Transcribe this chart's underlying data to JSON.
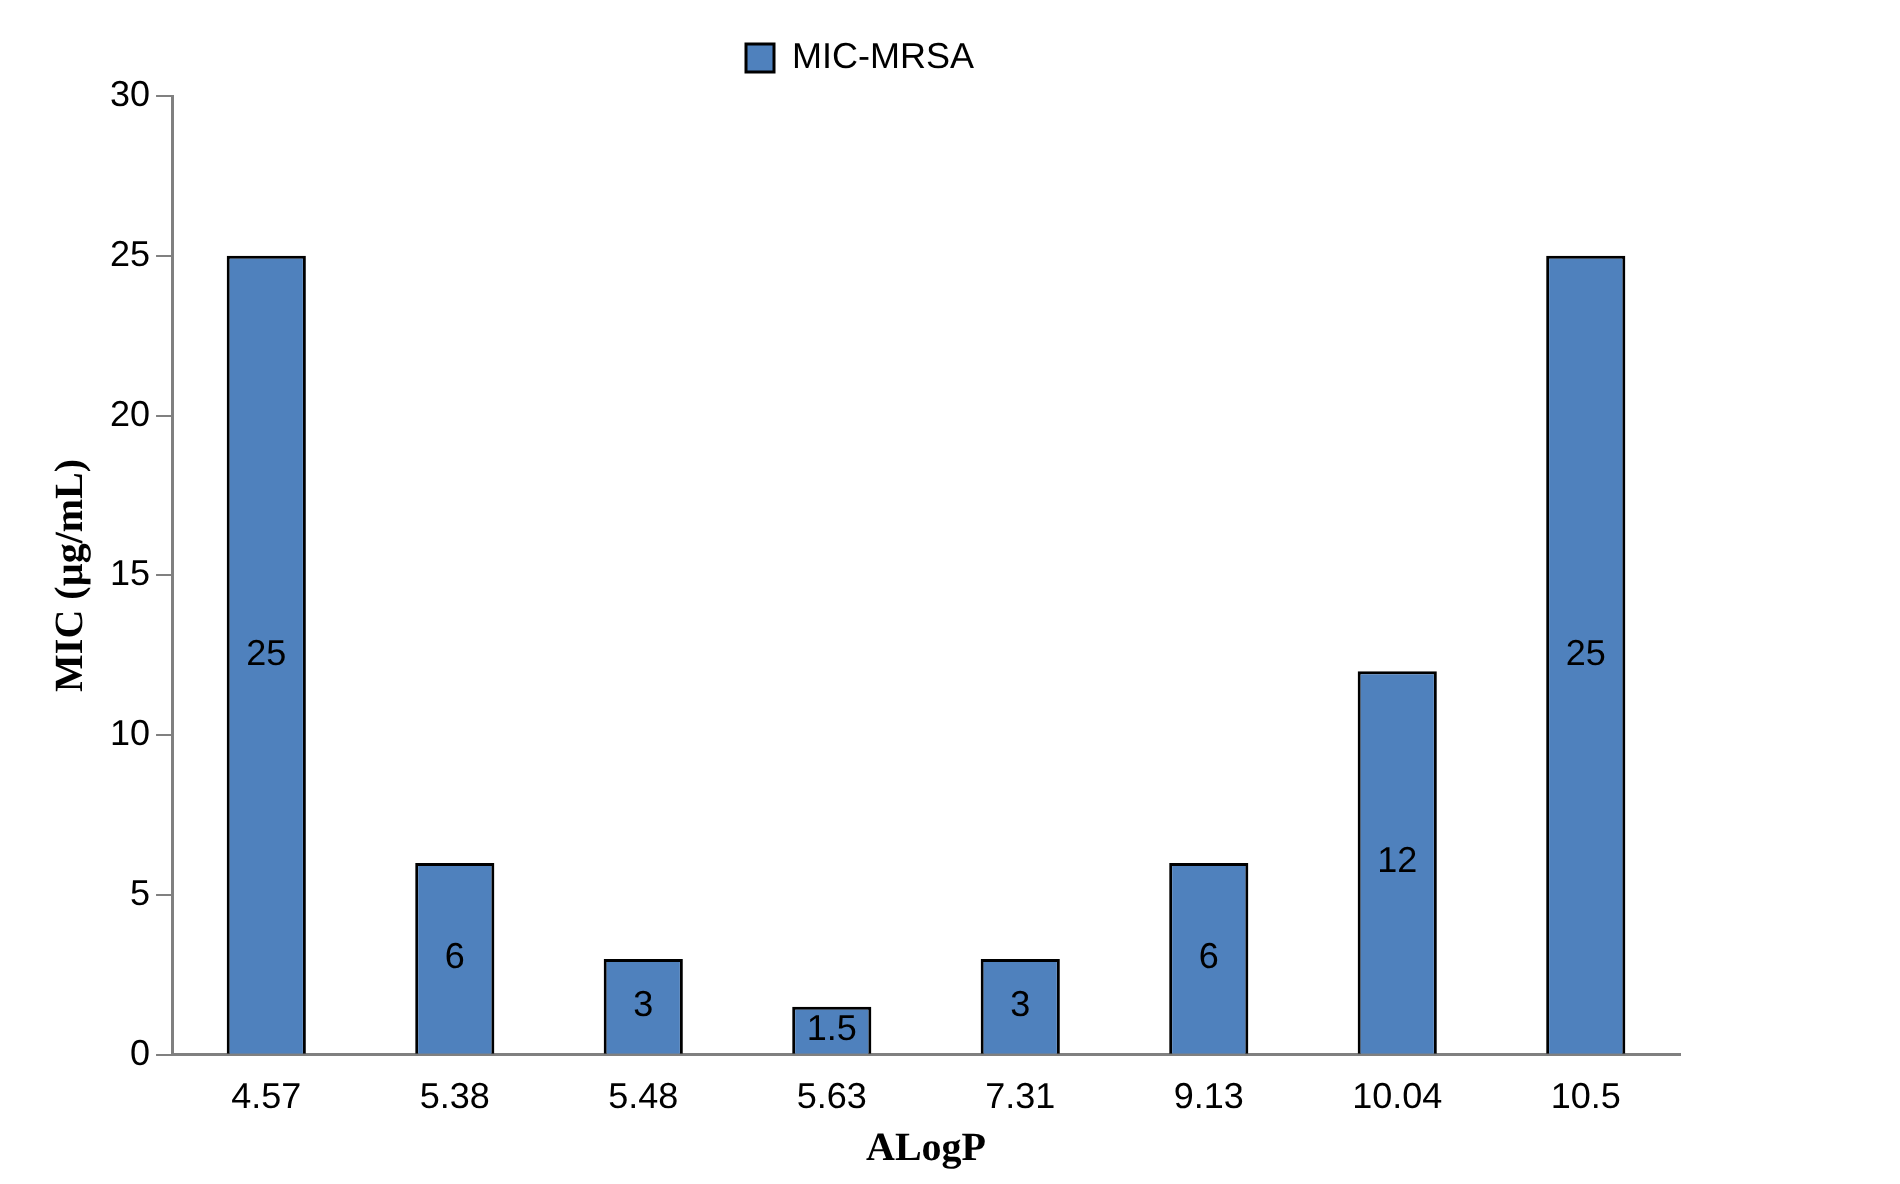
{
  "chart_data": {
    "type": "bar",
    "xlabel": "ALogP",
    "ylabel": "MIC (µg/mL)",
    "categories": [
      "4.57",
      "5.38",
      "5.48",
      "5.63",
      "7.31",
      "9.13",
      "10.04",
      "10.5"
    ],
    "series": [
      {
        "name": "MIC-MRSA",
        "color": "#4f81bd",
        "values": [
          25,
          6,
          3,
          1.5,
          3,
          6,
          12,
          25
        ]
      }
    ],
    "ylim": [
      0,
      30
    ],
    "yticks": [
      0,
      5,
      10,
      15,
      20,
      25,
      30
    ],
    "grid": false,
    "legend": "top",
    "data_labels": true
  }
}
